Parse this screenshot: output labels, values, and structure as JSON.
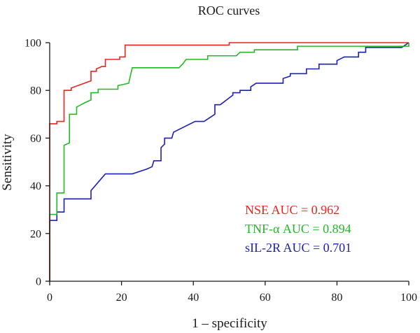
{
  "chart_data": {
    "type": "line",
    "title": "ROC curves",
    "xlabel": "1 – specificity",
    "ylabel": "Sensitivity",
    "xlim": [
      0,
      100
    ],
    "ylim": [
      0,
      100
    ],
    "xticks": [
      "0",
      "20",
      "40",
      "60",
      "80",
      "100"
    ],
    "yticks": [
      "0",
      "20",
      "40",
      "60",
      "80",
      "100"
    ],
    "grid": false,
    "legend_position": "bottom-right",
    "series": [
      {
        "name": "NSE AUC = 0.962",
        "color": "#e8251f",
        "points": [
          [
            0,
            0
          ],
          [
            0,
            66
          ],
          [
            2,
            66
          ],
          [
            2,
            67
          ],
          [
            4,
            67
          ],
          [
            4,
            80
          ],
          [
            6,
            80
          ],
          [
            6,
            81
          ],
          [
            11.5,
            84
          ],
          [
            11.5,
            88
          ],
          [
            13,
            88
          ],
          [
            13,
            89
          ],
          [
            14.5,
            90
          ],
          [
            15.5,
            90
          ],
          [
            15.5,
            93
          ],
          [
            19.5,
            93
          ],
          [
            19.5,
            94
          ],
          [
            21,
            94
          ],
          [
            21,
            99
          ],
          [
            50,
            99
          ],
          [
            50,
            100
          ],
          [
            100,
            100
          ]
        ]
      },
      {
        "name": "TNF-α AUC = 0.894",
        "color": "#22b924",
        "points": [
          [
            0,
            0
          ],
          [
            0,
            28
          ],
          [
            2,
            28
          ],
          [
            2,
            37
          ],
          [
            4,
            37
          ],
          [
            4,
            57
          ],
          [
            5.5,
            58
          ],
          [
            5.5,
            70
          ],
          [
            7.5,
            70
          ],
          [
            7.5,
            73
          ],
          [
            10,
            75
          ],
          [
            11.5,
            76
          ],
          [
            11.5,
            79
          ],
          [
            13.5,
            79
          ],
          [
            13.5,
            80.5
          ],
          [
            19,
            80.5
          ],
          [
            19,
            82
          ],
          [
            22,
            83
          ],
          [
            23,
            89.5
          ],
          [
            36,
            89.5
          ],
          [
            37,
            91
          ],
          [
            38,
            93
          ],
          [
            44,
            93
          ],
          [
            44,
            94.5
          ],
          [
            52,
            94.5
          ],
          [
            53,
            96
          ],
          [
            57,
            96
          ],
          [
            57,
            97
          ],
          [
            69,
            97
          ],
          [
            69,
            98.5
          ],
          [
            100,
            98.5
          ],
          [
            100,
            100
          ]
        ]
      },
      {
        "name": "sIL-2R AUC = 0.701",
        "color": "#1d1fb5",
        "points": [
          [
            0,
            0
          ],
          [
            0,
            25.5
          ],
          [
            2,
            25.5
          ],
          [
            2,
            29
          ],
          [
            4,
            29
          ],
          [
            4,
            34.5
          ],
          [
            11.5,
            34.5
          ],
          [
            11.5,
            38
          ],
          [
            15.5,
            45
          ],
          [
            23,
            45
          ],
          [
            27,
            47
          ],
          [
            28.5,
            48
          ],
          [
            29,
            50.5
          ],
          [
            31,
            50.5
          ],
          [
            31,
            56
          ],
          [
            32,
            57.5
          ],
          [
            32,
            60
          ],
          [
            34,
            60
          ],
          [
            34.5,
            62.5
          ],
          [
            40.5,
            67
          ],
          [
            43,
            67
          ],
          [
            46,
            70
          ],
          [
            46,
            74
          ],
          [
            47.5,
            74
          ],
          [
            51,
            78
          ],
          [
            51,
            79
          ],
          [
            53,
            79
          ],
          [
            53,
            80
          ],
          [
            56,
            80
          ],
          [
            56,
            81.5
          ],
          [
            57.5,
            83
          ],
          [
            65,
            83
          ],
          [
            65,
            85
          ],
          [
            67,
            86
          ],
          [
            67,
            87
          ],
          [
            71.5,
            87
          ],
          [
            71.5,
            89
          ],
          [
            75,
            89
          ],
          [
            75,
            91
          ],
          [
            80,
            91
          ],
          [
            80,
            92.5
          ],
          [
            82,
            94
          ],
          [
            86,
            94
          ],
          [
            86,
            96
          ],
          [
            88,
            96
          ],
          [
            88,
            98
          ],
          [
            95,
            98
          ],
          [
            98,
            98
          ],
          [
            99,
            99
          ],
          [
            100,
            100
          ]
        ]
      }
    ]
  }
}
